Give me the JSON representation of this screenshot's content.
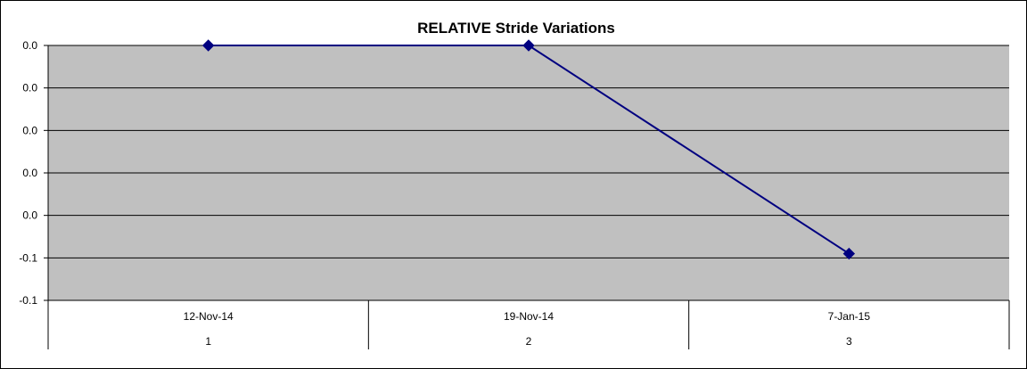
{
  "chart_data": {
    "type": "line",
    "title": "RELATIVE Stride Variations",
    "xlabel": "",
    "ylabel": "",
    "categories": [
      "12-Nov-14",
      "19-Nov-14",
      "7-Jan-15"
    ],
    "category_numbers": [
      "1",
      "2",
      "3"
    ],
    "series": [
      {
        "values": [
          0.0,
          0.0,
          -0.098
        ],
        "color": "#000080"
      }
    ],
    "y_tick_values": [
      0.0,
      -0.02,
      -0.04,
      -0.06,
      -0.08,
      -0.1,
      -0.12
    ],
    "y_tick_labels": [
      "0.0",
      "0.0",
      "0.0",
      "0.0",
      "0.0",
      "-0.1",
      "-0.1"
    ],
    "ylim": [
      -0.12,
      0.0
    ],
    "grid": true,
    "plot_background": "#c0c0c0",
    "gridline_color": "#000000"
  }
}
